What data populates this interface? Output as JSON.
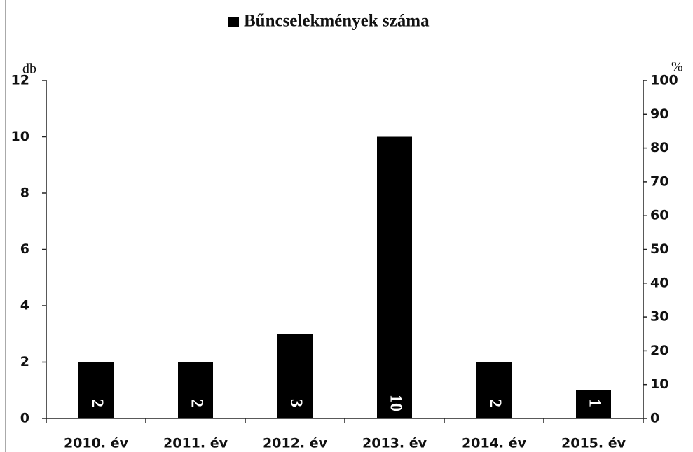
{
  "chart_data": {
    "type": "bar",
    "categories": [
      "2010. év",
      "2011. év",
      "2012. év",
      "2013. év",
      "2014. év",
      "2015. év"
    ],
    "series": [
      {
        "name": "Bűncselekmények száma",
        "color": "#000000",
        "values": [
          2,
          2,
          3,
          10,
          2,
          1
        ]
      }
    ],
    "ylabel": "db",
    "y2label": "%",
    "ylim": [
      0,
      12
    ],
    "yticks": [
      0,
      2,
      4,
      6,
      8,
      10,
      12
    ],
    "y2lim": [
      0,
      100
    ],
    "y2ticks": [
      0,
      10,
      20,
      30,
      40,
      50,
      60,
      70,
      80,
      90,
      100
    ],
    "grid": false,
    "legend": "top"
  }
}
